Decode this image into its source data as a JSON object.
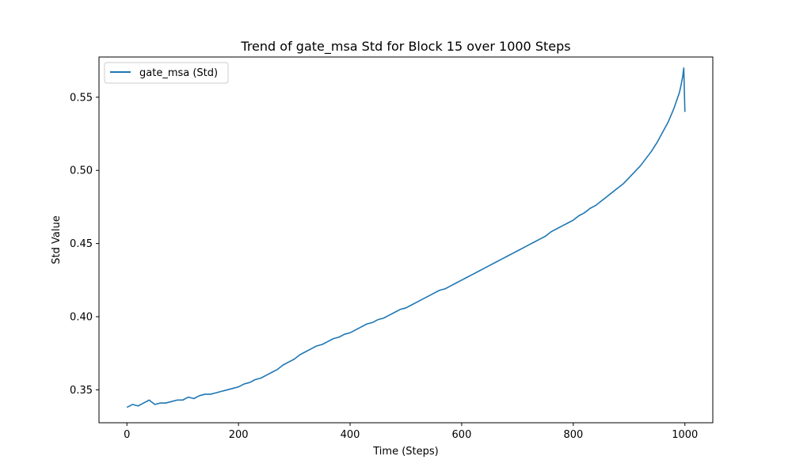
{
  "chart_data": {
    "type": "line",
    "title": "Trend of gate_msa Std for Block 15 over 1000 Steps",
    "xlabel": "Time (Steps)",
    "ylabel": "Std Value",
    "xlim": [
      -50,
      1050
    ],
    "ylim": [
      0.3275,
      0.5775
    ],
    "xticks": [
      0,
      200,
      400,
      600,
      800,
      1000
    ],
    "xtick_labels": [
      "0",
      "200",
      "400",
      "600",
      "800",
      "1000"
    ],
    "yticks": [
      0.35,
      0.4,
      0.45,
      0.5,
      0.55
    ],
    "ytick_labels": [
      "0.35",
      "0.40",
      "0.45",
      "0.50",
      "0.55"
    ],
    "grid": false,
    "legend_position": "top-left",
    "series": [
      {
        "name": "gate_msa (Std)",
        "color": "#1f77b4",
        "x": [
          0,
          10,
          20,
          30,
          40,
          50,
          60,
          70,
          80,
          90,
          100,
          110,
          120,
          130,
          140,
          150,
          160,
          170,
          180,
          190,
          200,
          210,
          220,
          230,
          240,
          250,
          260,
          270,
          280,
          290,
          300,
          310,
          320,
          330,
          340,
          350,
          360,
          370,
          380,
          390,
          400,
          410,
          420,
          430,
          440,
          450,
          460,
          470,
          480,
          490,
          500,
          510,
          520,
          530,
          540,
          550,
          560,
          570,
          580,
          590,
          600,
          610,
          620,
          630,
          640,
          650,
          660,
          670,
          680,
          690,
          700,
          710,
          720,
          730,
          740,
          750,
          760,
          770,
          780,
          790,
          800,
          810,
          820,
          830,
          840,
          850,
          860,
          870,
          880,
          890,
          900,
          910,
          920,
          930,
          940,
          950,
          960,
          970,
          980,
          990,
          993,
          996,
          998,
          1000
        ],
        "y": [
          0.338,
          0.34,
          0.339,
          0.341,
          0.343,
          0.34,
          0.341,
          0.341,
          0.342,
          0.343,
          0.343,
          0.345,
          0.344,
          0.346,
          0.347,
          0.347,
          0.348,
          0.349,
          0.35,
          0.351,
          0.352,
          0.354,
          0.355,
          0.357,
          0.358,
          0.36,
          0.362,
          0.364,
          0.367,
          0.369,
          0.371,
          0.374,
          0.376,
          0.378,
          0.38,
          0.381,
          0.383,
          0.385,
          0.386,
          0.388,
          0.389,
          0.391,
          0.393,
          0.395,
          0.396,
          0.398,
          0.399,
          0.401,
          0.403,
          0.405,
          0.406,
          0.408,
          0.41,
          0.412,
          0.414,
          0.416,
          0.418,
          0.419,
          0.421,
          0.423,
          0.425,
          0.427,
          0.429,
          0.431,
          0.433,
          0.435,
          0.437,
          0.439,
          0.441,
          0.443,
          0.445,
          0.447,
          0.449,
          0.451,
          0.453,
          0.455,
          0.458,
          0.46,
          0.462,
          0.464,
          0.466,
          0.469,
          0.471,
          0.474,
          0.476,
          0.479,
          0.482,
          0.485,
          0.488,
          0.491,
          0.495,
          0.499,
          0.503,
          0.508,
          0.513,
          0.519,
          0.526,
          0.533,
          0.542,
          0.553,
          0.558,
          0.564,
          0.57,
          0.54
        ]
      }
    ]
  }
}
